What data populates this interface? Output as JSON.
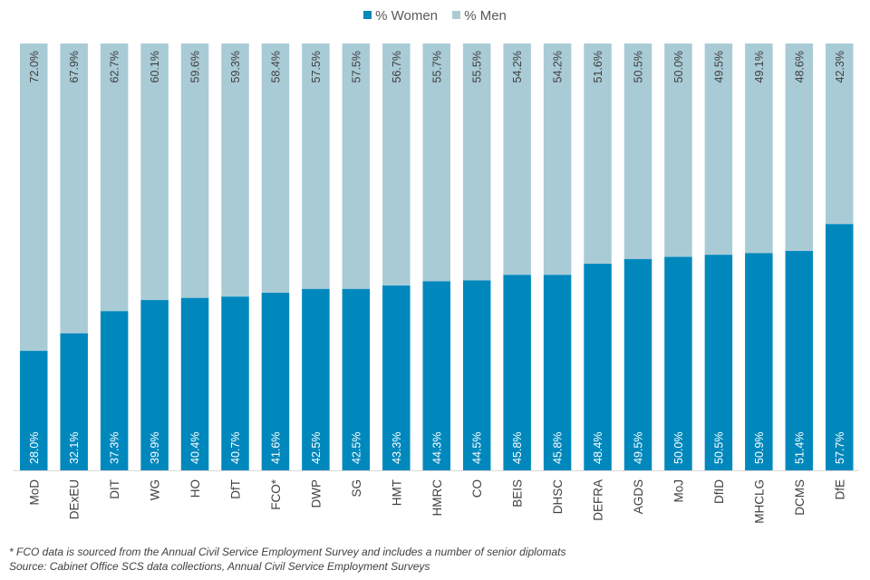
{
  "chart_data": {
    "type": "bar",
    "stacked": true,
    "categories": [
      "MoD",
      "DExEU",
      "DIT",
      "WG",
      "HO",
      "DfT",
      "FCO*",
      "DWP",
      "SG",
      "HMT",
      "HMRC",
      "CO",
      "BEIS",
      "DHSC",
      "DEFRA",
      "AGDS",
      "MoJ",
      "DfID",
      "MHCLG",
      "DCMS",
      "DfE"
    ],
    "series": [
      {
        "name": "% Women",
        "color": "#0088BD",
        "values": [
          28.0,
          32.1,
          37.3,
          39.9,
          40.4,
          40.7,
          41.6,
          42.5,
          42.5,
          43.3,
          44.3,
          44.5,
          45.8,
          45.8,
          48.4,
          49.5,
          50.0,
          50.5,
          50.9,
          51.4,
          57.7
        ]
      },
      {
        "name": "% Men",
        "color": "#A9CBD6",
        "values": [
          72.0,
          67.9,
          62.7,
          60.1,
          59.6,
          59.3,
          58.4,
          57.5,
          57.5,
          56.7,
          55.7,
          55.5,
          54.2,
          54.2,
          51.6,
          50.5,
          50.0,
          49.5,
          49.1,
          48.6,
          42.3
        ]
      }
    ],
    "ylim": [
      0,
      100
    ],
    "legend_position": "top-center",
    "grid": false
  },
  "footnotes": {
    "fco_note": "* FCO data is sourced from the Annual Civil Service Employment Survey and includes a number of senior diplomats",
    "source": "Source: Cabinet Office SCS data collections, Annual Civil Service Employment Surveys"
  }
}
